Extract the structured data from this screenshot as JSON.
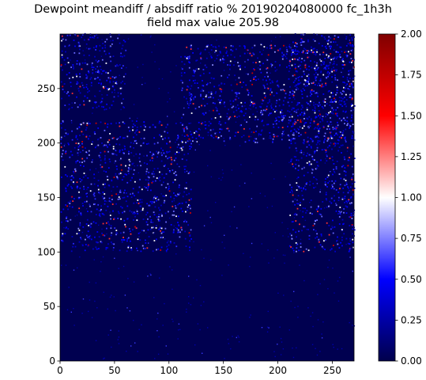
{
  "title": {
    "line1": "Dewpoint meandiff / absdiff ratio % 20190204080000 fc_1h3h",
    "line2": "field max value 205.98"
  },
  "chart_data": {
    "type": "heatmap",
    "title": "Dewpoint meandiff / absdiff ratio % 20190204080000 fc_1h3h",
    "subtitle": "field max value 205.98",
    "field_max_value": 205.98,
    "x_range": [
      0,
      270
    ],
    "y_range": [
      0,
      300
    ],
    "x_ticks": [
      0,
      50,
      100,
      150,
      200,
      250
    ],
    "y_ticks": [
      0,
      50,
      100,
      150,
      200,
      250
    ],
    "colorbar": {
      "range": [
        0.0,
        2.0
      ],
      "ticks": [
        "0.00",
        "0.25",
        "0.50",
        "0.75",
        "1.00",
        "1.25",
        "1.50",
        "1.75",
        "2.00"
      ],
      "colormap": "seismic",
      "colors": [
        "#00004c",
        "#0000ff",
        "#ffffff",
        "#ff0000",
        "#800000"
      ]
    },
    "background_color": "#000050",
    "hotspot_regions": [
      {
        "x": [
          0,
          120
        ],
        "y": [
          100,
          220
        ]
      },
      {
        "x": [
          0,
          60
        ],
        "y": [
          230,
          300
        ]
      },
      {
        "x": [
          110,
          270
        ],
        "y": [
          200,
          290
        ]
      },
      {
        "x": [
          210,
          270
        ],
        "y": [
          100,
          300
        ]
      }
    ]
  }
}
